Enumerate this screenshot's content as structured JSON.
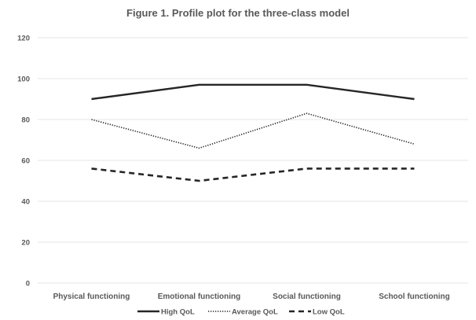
{
  "chart_data": {
    "type": "line",
    "title": "Figure 1. Profile plot for the three-class model",
    "categories": [
      "Physical functioning",
      "Emotional functioning",
      "Social functioning",
      "School functioning"
    ],
    "series": [
      {
        "name": "High QoL",
        "values": [
          90,
          97,
          97,
          90
        ],
        "style": "solid"
      },
      {
        "name": "Average QoL",
        "values": [
          80,
          66,
          83,
          68
        ],
        "style": "dotted"
      },
      {
        "name": "Low QoL",
        "values": [
          56,
          50,
          56,
          56
        ],
        "style": "dashed"
      }
    ],
    "ylim": [
      0,
      120
    ],
    "yticks": [
      0,
      20,
      40,
      60,
      80,
      100,
      120
    ],
    "grid": true,
    "legend": "bottom",
    "colors": {
      "series": "#262626",
      "grid": "#e6e6e6",
      "text": "#595959"
    }
  }
}
